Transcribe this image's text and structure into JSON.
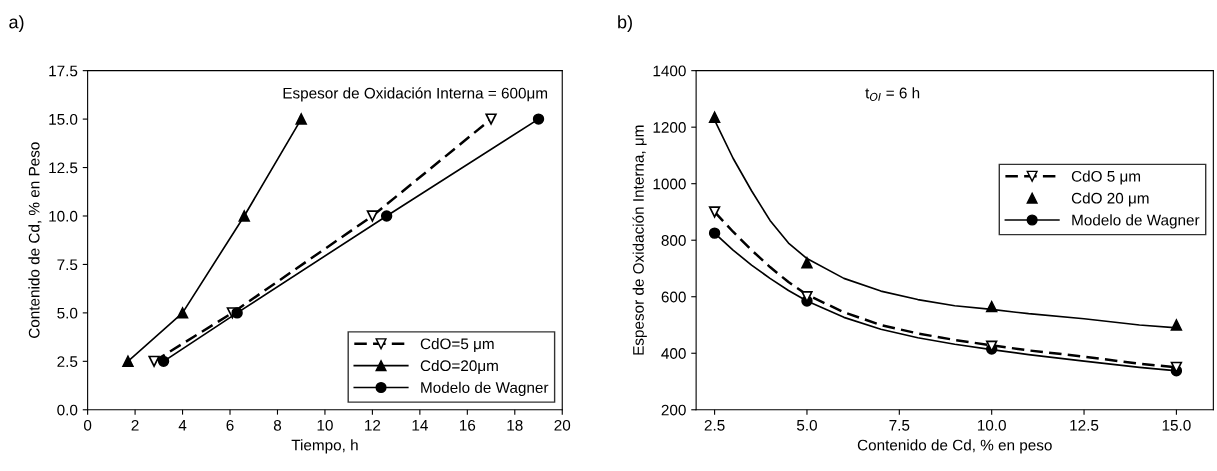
{
  "chart_data": [
    {
      "type": "line",
      "xlabel": "Tiempo, h",
      "ylabel": "Contenido de Cd, % en Peso",
      "annotations": [
        "a)",
        "Espesor de Oxidación Interna = 600μm"
      ],
      "xlim": [
        0,
        20
      ],
      "ylim": [
        0,
        17.5
      ],
      "xticks": [
        0,
        2,
        4,
        6,
        8,
        10,
        12,
        14,
        16,
        18,
        20
      ],
      "yticks": [
        {
          "value": 0,
          "label": "0.0"
        },
        2.5,
        {
          "value": 5,
          "label": "5.0"
        },
        7.5,
        {
          "value": 10,
          "label": "10.0"
        },
        12.5,
        {
          "value": 15,
          "label": "15.0"
        },
        17.5
      ],
      "legend": "bottom right",
      "series": [
        {
          "name": "CdO=5 μm",
          "color": "#000000",
          "x": [
            2.8,
            6.1,
            12.0,
            17.0
          ],
          "values": [
            2.5,
            5.0,
            10.0,
            15.0
          ],
          "marker": "triangle_down_open",
          "line_style": "dashed"
        },
        {
          "name": "CdO=20μm",
          "color": "#000000",
          "x": [
            1.7,
            4.0,
            6.6,
            9.0
          ],
          "values": [
            2.5,
            5.0,
            10.0,
            15.0
          ],
          "marker": "triangle",
          "line_style": "solid"
        },
        {
          "name": "Modelo de Wagner",
          "color": "#000000",
          "x": [
            3.2,
            6.3,
            12.6,
            19.0
          ],
          "values": [
            2.5,
            5.0,
            10.0,
            15.0
          ],
          "marker": "circle",
          "line_style": "solid"
        }
      ]
    },
    {
      "type": "scatter",
      "xlabel": "Contenido de Cd, % en peso",
      "ylabel": "Espesor de Oxidación Interna, μm",
      "annotations": [
        "b)",
        "t$_{OI}$ = 6 h"
      ],
      "xlim": [
        2.0,
        16.0
      ],
      "ylim": [
        200,
        1400
      ],
      "xticks": [
        2.5,
        {
          "value": 5,
          "label": "5.0"
        },
        7.5,
        {
          "value": 10,
          "label": "10.0"
        },
        12.5,
        {
          "value": 15,
          "label": "15.0"
        }
      ],
      "yticks": [
        200,
        400,
        600,
        800,
        1000,
        1200,
        1400
      ],
      "legend": "right",
      "series": [
        {
          "name": "CdO 5 μm",
          "color": "#000000",
          "x": [
            2.5,
            5.0,
            10.0,
            15.0
          ],
          "values": [
            900,
            600,
            425,
            350
          ],
          "marker": "triangle_down_open",
          "line_style": "dashed"
        },
        {
          "name": "CdO 20 μm",
          "color": "#000000",
          "x": [
            2.5,
            5.0,
            10.0,
            15.0
          ],
          "values": [
            1235,
            720,
            565,
            500
          ],
          "marker": "triangle"
        },
        {
          "name": "Modelo de Wagner",
          "color": "#000000",
          "x": [
            2.5,
            5.0,
            10.0,
            15.0
          ],
          "values": [
            825,
            585,
            415,
            338
          ],
          "marker": "circle",
          "line_style": "solid"
        },
        {
          "type": "line",
          "color": "#000000",
          "x": [
            2.5,
            3,
            3.5,
            4,
            4.5,
            5,
            6,
            7,
            8,
            9,
            10,
            11,
            12.5,
            14,
            15
          ],
          "values": [
            900,
            830,
            765,
            705,
            652,
            607,
            545,
            500,
            470,
            447,
            428,
            410,
            388,
            363,
            350
          ],
          "line_style": "dashed"
        },
        {
          "type": "line",
          "color": "#000000",
          "x": [
            2.5,
            3,
            3.5,
            4,
            4.5,
            5,
            6,
            7,
            8,
            9,
            10,
            11,
            12.5,
            14,
            15
          ],
          "values": [
            1225,
            1090,
            975,
            870,
            790,
            735,
            665,
            620,
            590,
            568,
            555,
            540,
            522,
            500,
            490
          ],
          "line_style": "solid"
        },
        {
          "type": "line",
          "color": "#000000",
          "x": [
            2.5,
            3,
            3.5,
            4,
            4.5,
            5,
            6,
            7,
            8,
            9,
            10,
            11,
            12.5,
            14,
            15
          ],
          "values": [
            825,
            765,
            712,
            665,
            622,
            585,
            527,
            485,
            455,
            432,
            413,
            395,
            372,
            350,
            338
          ],
          "line_style": "solid"
        }
      ]
    }
  ]
}
